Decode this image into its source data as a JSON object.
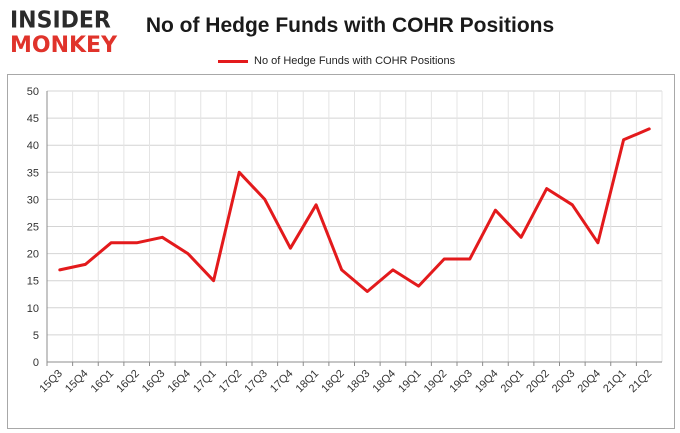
{
  "logo": {
    "line1": "INSIDER",
    "line2": "MONKEY"
  },
  "chart_data": {
    "type": "line",
    "title": "No of Hedge Funds with COHR Positions",
    "xlabel": "",
    "ylabel": "",
    "categories": [
      "15Q3",
      "15Q4",
      "16Q1",
      "16Q2",
      "16Q3",
      "16Q4",
      "17Q1",
      "17Q2",
      "17Q3",
      "17Q4",
      "18Q1",
      "18Q2",
      "18Q3",
      "18Q4",
      "19Q1",
      "19Q2",
      "19Q3",
      "19Q4",
      "20Q1",
      "20Q2",
      "20Q3",
      "20Q4",
      "21Q1",
      "21Q2"
    ],
    "series": [
      {
        "name": "No of Hedge Funds with COHR Positions",
        "color": "#e31a1c",
        "values": [
          17,
          18,
          22,
          22,
          23,
          20,
          15,
          35,
          30,
          21,
          29,
          17,
          13,
          17,
          14,
          19,
          19,
          28,
          23,
          32,
          29,
          22,
          41,
          43
        ]
      }
    ],
    "ylim": [
      0,
      50
    ],
    "yticks": [
      0,
      5,
      10,
      15,
      20,
      25,
      30,
      35,
      40,
      45,
      50
    ],
    "grid": true,
    "legend": "top-center"
  }
}
